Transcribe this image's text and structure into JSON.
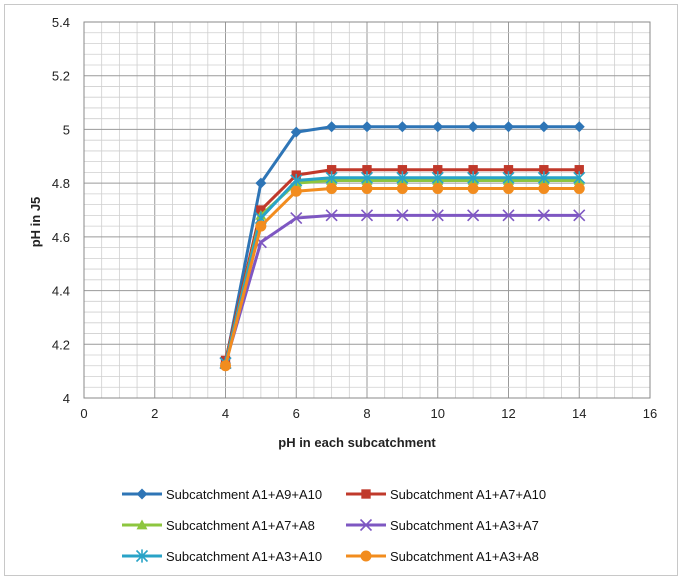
{
  "chart_data": {
    "type": "line",
    "title": "",
    "xlabel": "pH in each subcatchment",
    "ylabel": "pH in J5",
    "xlim": [
      0,
      16
    ],
    "ylim": [
      4,
      5.4
    ],
    "x_ticks": [
      0,
      2,
      4,
      6,
      8,
      10,
      12,
      14,
      16
    ],
    "y_ticks": [
      "4",
      "4.2",
      "4.4",
      "4.6",
      "4.8",
      "5",
      "5.2",
      "5.4"
    ],
    "grid": true,
    "legend_position": "bottom",
    "x": [
      4,
      5,
      6,
      7,
      8,
      9,
      10,
      11,
      12,
      13,
      14
    ],
    "series": [
      {
        "name": "Subcatchment A1+A9+A10",
        "color": "#2e75b6",
        "marker": "diamond",
        "values": [
          4.13,
          4.8,
          4.99,
          5.01,
          5.01,
          5.01,
          5.01,
          5.01,
          5.01,
          5.01,
          5.01
        ]
      },
      {
        "name": "Subcatchment A1+A7+A10",
        "color": "#c0392b",
        "marker": "square",
        "values": [
          4.14,
          4.7,
          4.83,
          4.85,
          4.85,
          4.85,
          4.85,
          4.85,
          4.85,
          4.85,
          4.85
        ]
      },
      {
        "name": "Subcatchment A1+A7+A8",
        "color": "#8dc63f",
        "marker": "triangle",
        "values": [
          4.13,
          4.68,
          4.8,
          4.81,
          4.81,
          4.81,
          4.81,
          4.81,
          4.81,
          4.81,
          4.81
        ]
      },
      {
        "name": "Subcatchment A1+A3+A7",
        "color": "#7e57c2",
        "marker": "x",
        "values": [
          4.13,
          4.58,
          4.67,
          4.68,
          4.68,
          4.68,
          4.68,
          4.68,
          4.68,
          4.68,
          4.68
        ]
      },
      {
        "name": "Subcatchment A1+A3+A10",
        "color": "#29a3c7",
        "marker": "star",
        "values": [
          4.13,
          4.67,
          4.81,
          4.82,
          4.82,
          4.82,
          4.82,
          4.82,
          4.82,
          4.82,
          4.82
        ]
      },
      {
        "name": "Subcatchment A1+A3+A8",
        "color": "#f28c1e",
        "marker": "circle",
        "values": [
          4.12,
          4.64,
          4.77,
          4.78,
          4.78,
          4.78,
          4.78,
          4.78,
          4.78,
          4.78,
          4.78
        ]
      }
    ]
  }
}
